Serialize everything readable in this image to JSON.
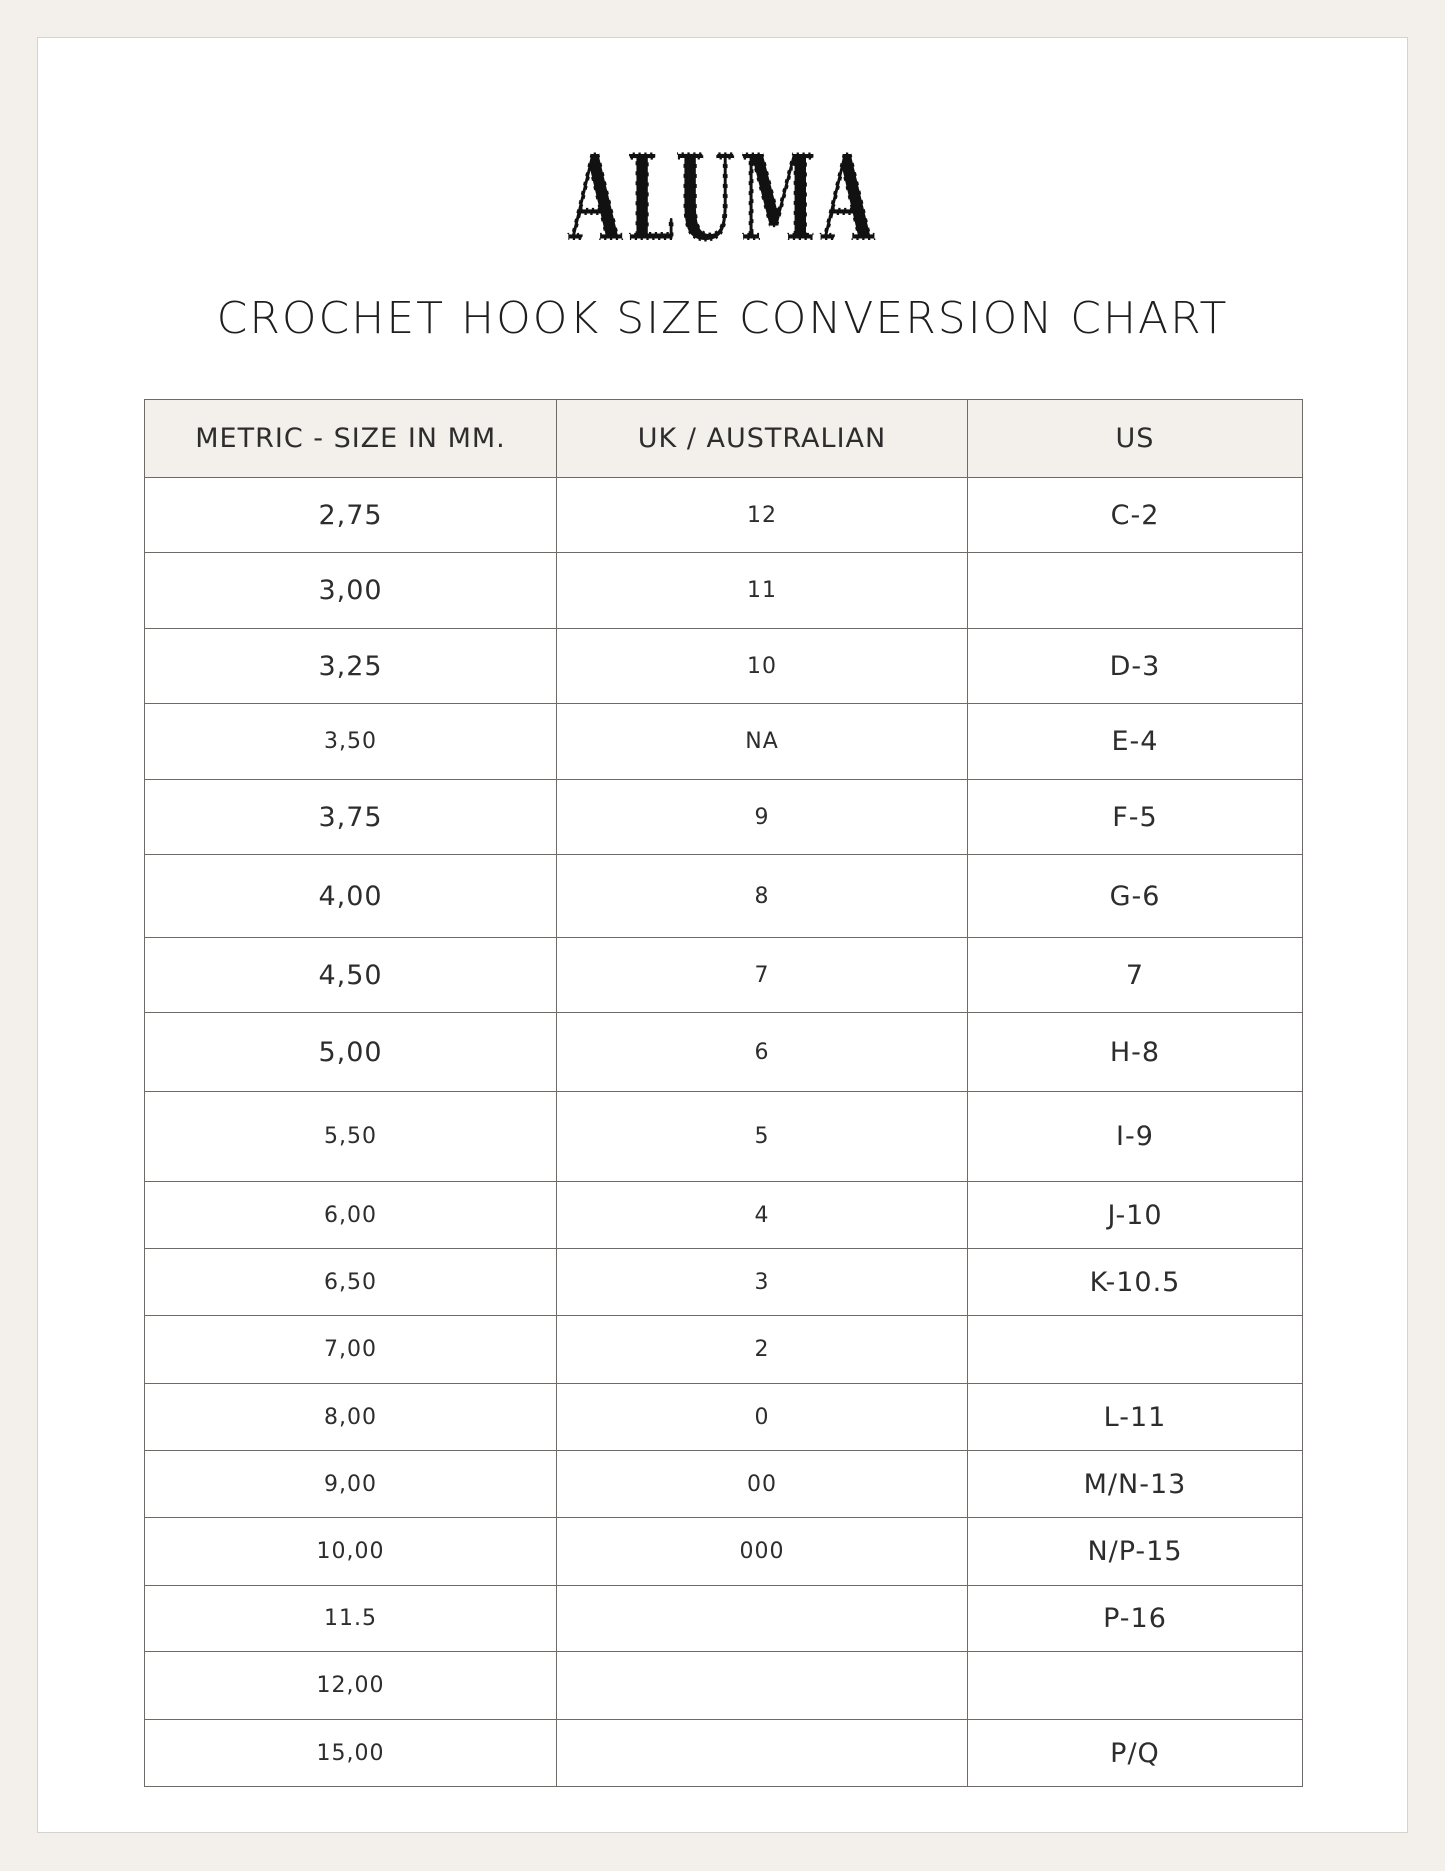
{
  "logo": {
    "text": "ALUMA"
  },
  "title": "CROCHET HOOK SIZE CONVERSION CHART",
  "table": {
    "headers": [
      "METRIC - SIZE IN MM.",
      "UK / AUSTRALIAN",
      "US"
    ],
    "rows": [
      {
        "metric": "2,75",
        "uk": "12",
        "us": "C-2"
      },
      {
        "metric": "3,00",
        "uk": "11",
        "us": ""
      },
      {
        "metric": "3,25",
        "uk": "10",
        "us": "D-3"
      },
      {
        "metric": "3,50",
        "uk": "NA",
        "us": "E-4"
      },
      {
        "metric": "3,75",
        "uk": "9",
        "us": "F-5"
      },
      {
        "metric": "4,00",
        "uk": "8",
        "us": "G-6"
      },
      {
        "metric": "4,50",
        "uk": "7",
        "us": "7"
      },
      {
        "metric": "5,00",
        "uk": "6",
        "us": "H-8"
      },
      {
        "metric": "5,50",
        "uk": "5",
        "us": "I-9"
      },
      {
        "metric": "6,00",
        "uk": "4",
        "us": "J-10"
      },
      {
        "metric": "6,50",
        "uk": "3",
        "us": "K-10.5"
      },
      {
        "metric": "7,00",
        "uk": "2",
        "us": ""
      },
      {
        "metric": "8,00",
        "uk": "0",
        "us": "L-11"
      },
      {
        "metric": "9,00",
        "uk": "00",
        "us": "M/N-13"
      },
      {
        "metric": "10,00",
        "uk": "000",
        "us": "N/P-15"
      },
      {
        "metric": "11.5",
        "uk": "",
        "us": "P-16"
      },
      {
        "metric": "12,00",
        "uk": "",
        "us": ""
      },
      {
        "metric": "15,00",
        "uk": "",
        "us": "P/Q"
      }
    ]
  },
  "colors": {
    "background": "#f3f0ec",
    "header_fill": "#f3efeb",
    "border": "#6f6a66"
  }
}
